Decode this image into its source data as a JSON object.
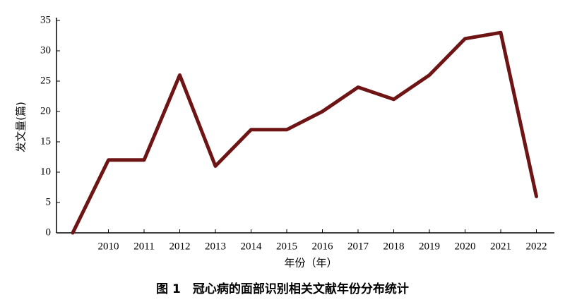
{
  "chart_data": {
    "type": "line",
    "title": "图 1　冠心病的面部识别相关文献年份分布统计",
    "x_label": "年份（年）",
    "y_label": "发文量(篇)",
    "categories": [
      null,
      "2010",
      "2011",
      "2012",
      "2013",
      "2014",
      "2015",
      "2016",
      "2017",
      "2018",
      "2019",
      "2020",
      "2021",
      "2022"
    ],
    "values": [
      0,
      12,
      12,
      26,
      11,
      17,
      17,
      20,
      24,
      22,
      26,
      32,
      33,
      6
    ],
    "color": "#6e1414",
    "ylim": [
      0,
      35
    ],
    "yticks": [
      0,
      5,
      10,
      15,
      20,
      25,
      30,
      35
    ]
  }
}
